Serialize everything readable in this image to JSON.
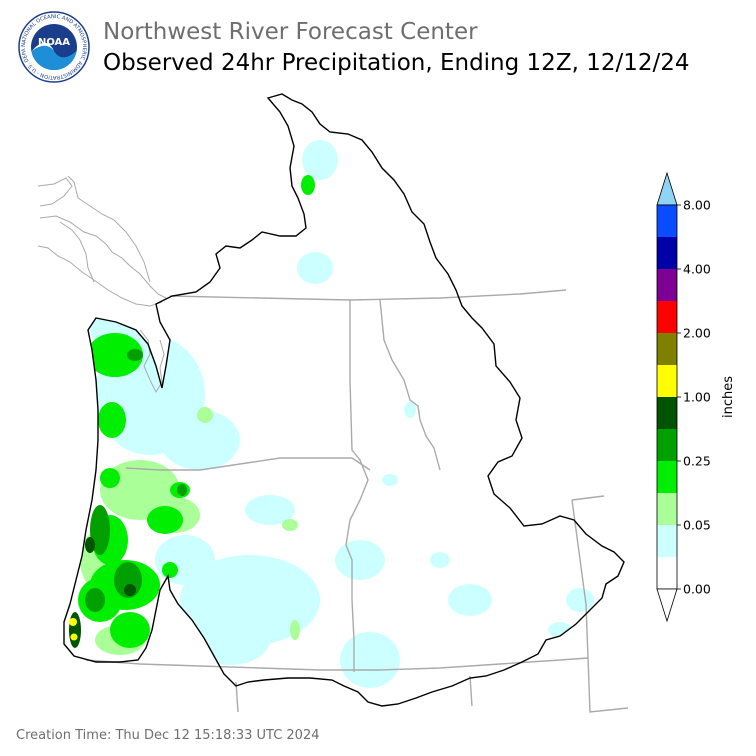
{
  "header": {
    "agency": "Northwest River Forecast Center",
    "title": "Observed 24hr Precipitation, Ending 12Z, 12/12/24"
  },
  "logo": {
    "text": "NOAA",
    "ring_text": "NATIONAL OCEANIC AND ATMOSPHERIC ADMINISTRATION · U.S. DEPARTMENT OF COMMERCE",
    "ring_color": "#1a3e8c",
    "sky_color": "#1e8fd6"
  },
  "legend": {
    "unit": "inches",
    "ticks": [
      "8.00",
      "4.00",
      "2.00",
      "1.00",
      "0.25",
      "0.05",
      "0.00"
    ],
    "colors": [
      "#8fd3f5",
      "#0a4cff",
      "#0000a8",
      "#7d0094",
      "#ff0000",
      "#7f7f00",
      "#ffff00",
      "#005400",
      "#00a000",
      "#00ee00",
      "#aaff99",
      "#ccffff",
      "#ffffff",
      "#ffffff"
    ]
  },
  "map_colors": {
    "trace": "#ccffff",
    "light": "#aaff99",
    "moderate": "#00ee00",
    "heavy": "#00a000",
    "very_heavy": "#005400",
    "one_inch": "#ffff00",
    "basin_border": "#000000",
    "state_border": "#aaaaaa"
  },
  "footer": {
    "creation": "Creation Time: Thu Dec 12 15:18:33 UTC 2024"
  }
}
